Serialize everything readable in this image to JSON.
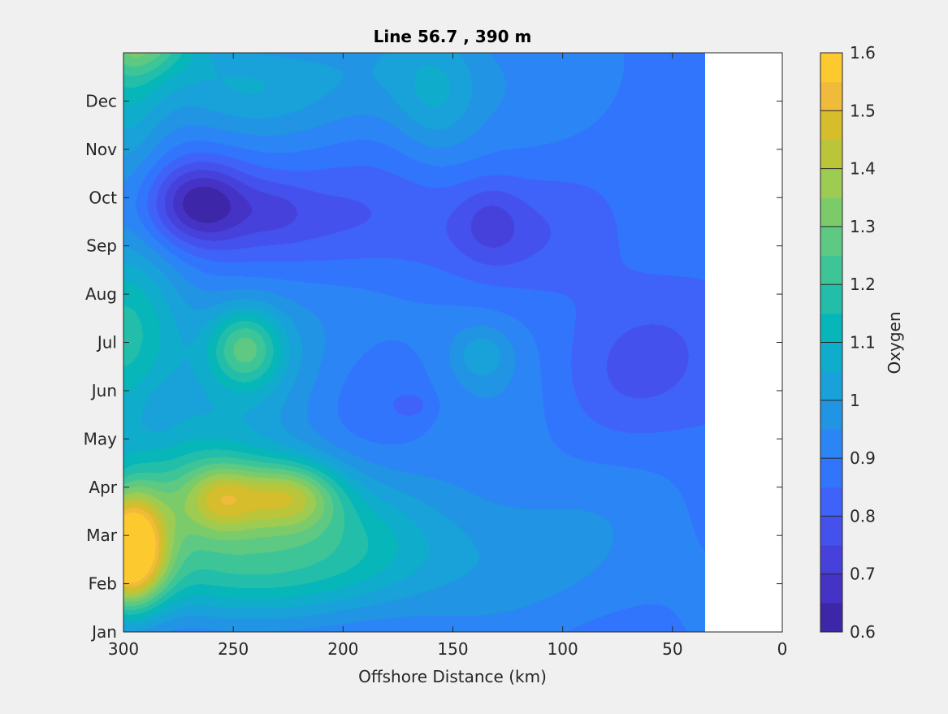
{
  "chart_data": {
    "type": "heatmap",
    "title": "Line 56.7 , 390 m",
    "xlabel": "Offshore Distance (km)",
    "ylabel": "",
    "x_reversed": true,
    "xlim": [
      0,
      300
    ],
    "x_ticks": [
      300,
      250,
      200,
      150,
      100,
      50,
      0
    ],
    "y_ticks": [
      "Jan",
      "Feb",
      "Mar",
      "Apr",
      "May",
      "Jun",
      "Jul",
      "Aug",
      "Sep",
      "Oct",
      "Nov",
      "Dec"
    ],
    "data_extent_km": [
      35,
      300
    ],
    "colorbar": {
      "label": "Oxygen",
      "lim": [
        0.6,
        1.6
      ],
      "tick_values": [
        0.6,
        0.7,
        0.8,
        0.9,
        1.0,
        1.1,
        1.2,
        1.3,
        1.4,
        1.5,
        1.6
      ],
      "tick_labels": [
        "0.6",
        "0.7",
        "0.8",
        "0.9",
        "1",
        "1.1",
        "1.2",
        "1.3",
        "1.4",
        "1.5",
        "1.6"
      ],
      "levels": [
        0.6,
        0.65,
        0.7,
        0.75,
        0.8,
        0.85,
        0.9,
        0.95,
        1.0,
        1.05,
        1.1,
        1.15,
        1.2,
        1.25,
        1.3,
        1.35,
        1.4,
        1.45,
        1.5,
        1.55,
        1.6
      ],
      "colors": [
        "#3e26a8",
        "#4433c4",
        "#4741dc",
        "#4551ed",
        "#3f63f9",
        "#3175fd",
        "#2c85f5",
        "#2194e3",
        "#19a1d9",
        "#0fadcb",
        "#06b6b8",
        "#22beaa",
        "#3ec597",
        "#5ec982",
        "#7ccb6b",
        "#9ecb52",
        "#bbc53a",
        "#d5bd2b",
        "#f0ba3a",
        "#fcca2f"
      ]
    },
    "background_level": 0.88,
    "features": [
      {
        "x": 298,
        "month": 1.7,
        "sx": 12,
        "sy": 0.85,
        "amp": 0.72
      },
      {
        "x": 268,
        "month": 2.5,
        "sx": 28,
        "sy": 1.2,
        "amp": 0.25
      },
      {
        "x": 256,
        "month": 2.8,
        "sx": 12,
        "sy": 0.5,
        "amp": 0.22
      },
      {
        "x": 224,
        "month": 2.85,
        "sx": 16,
        "sy": 0.5,
        "amp": 0.3
      },
      {
        "x": 225,
        "month": 2.4,
        "sx": 35,
        "sy": 1.0,
        "amp": 0.16
      },
      {
        "x": 190,
        "month": 1.8,
        "sx": 40,
        "sy": 0.8,
        "amp": 0.12
      },
      {
        "x": 250,
        "month": 1.0,
        "sx": 50,
        "sy": 0.6,
        "amp": 0.12
      },
      {
        "x": 120,
        "month": 1.5,
        "sx": 50,
        "sy": 1.2,
        "amp": 0.08
      },
      {
        "x": 245,
        "month": 5.9,
        "sx": 12,
        "sy": 0.6,
        "amp": 0.28
      },
      {
        "x": 240,
        "month": 5.7,
        "sx": 28,
        "sy": 1.3,
        "amp": 0.12
      },
      {
        "x": 300,
        "month": 6.1,
        "sx": 20,
        "sy": 1.5,
        "amp": 0.27
      },
      {
        "x": 300,
        "month": 11.4,
        "sx": 14,
        "sy": 2.0,
        "amp": 0.17
      },
      {
        "x": 290,
        "month": 12.4,
        "sx": 18,
        "sy": 0.6,
        "amp": 0.3
      },
      {
        "x": 248,
        "month": 11.3,
        "sx": 25,
        "sy": 0.7,
        "amp": 0.12
      },
      {
        "x": 190,
        "month": 11.6,
        "sx": 60,
        "sy": 1.0,
        "amp": 0.1
      },
      {
        "x": 158,
        "month": 11.0,
        "sx": 14,
        "sy": 0.9,
        "amp": 0.12
      },
      {
        "x": 150,
        "month": 6.0,
        "sx": 28,
        "sy": 1.0,
        "amp": 0.06
      },
      {
        "x": 137,
        "month": 5.75,
        "sx": 9,
        "sy": 0.4,
        "amp": 0.1
      },
      {
        "x": 45,
        "month": 6.4,
        "sx": 20,
        "sy": 2.5,
        "amp": 0.05
      },
      {
        "x": 125,
        "month": 4.5,
        "sx": 45,
        "sy": 1.2,
        "amp": 0.05
      },
      {
        "x": 265,
        "month": 8.9,
        "sx": 16,
        "sy": 0.6,
        "amp": -0.23
      },
      {
        "x": 240,
        "month": 8.6,
        "sx": 45,
        "sy": 0.8,
        "amp": -0.1
      },
      {
        "x": 230,
        "month": 8.75,
        "sx": 10,
        "sy": 0.4,
        "amp": -0.05
      },
      {
        "x": 133,
        "month": 8.5,
        "sx": 10,
        "sy": 0.55,
        "amp": -0.08
      },
      {
        "x": 135,
        "month": 8.3,
        "sx": 45,
        "sy": 0.85,
        "amp": -0.07
      },
      {
        "x": 172,
        "month": 5.0,
        "sx": 25,
        "sy": 1.1,
        "amp": -0.06
      },
      {
        "x": 168,
        "month": 4.7,
        "sx": 6,
        "sy": 0.2,
        "amp": -0.05
      },
      {
        "x": 70,
        "month": 5.3,
        "sx": 35,
        "sy": 1.2,
        "amp": -0.09
      },
      {
        "x": 45,
        "month": 6.5,
        "sx": 22,
        "sy": 2.2,
        "amp": -0.06
      },
      {
        "x": 285,
        "month": 4.6,
        "sx": 8,
        "sy": 0.6,
        "amp": -0.05
      }
    ]
  }
}
